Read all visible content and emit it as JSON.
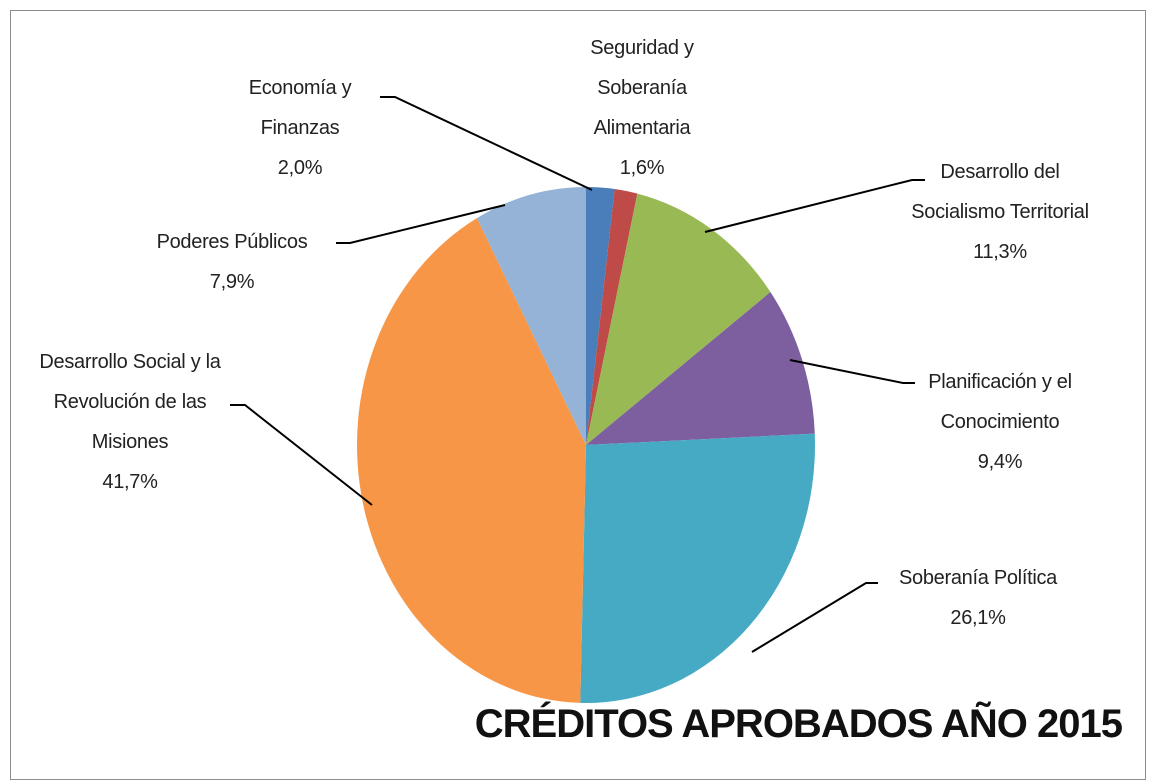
{
  "chart_data": {
    "type": "pie",
    "title": "CRÉDITOS APROBADOS AÑO 2015",
    "categories": [
      "Economía y Finanzas",
      "Seguridad y Soberanía Alimentaria",
      "Desarrollo del Socialismo Territorial",
      "Planificación y el Conocimiento",
      "Soberanía Política",
      "Desarrollo Social y la Revolución de las Misiones",
      "Poderes Públicos"
    ],
    "values": [
      2.0,
      1.6,
      11.3,
      9.4,
      26.1,
      41.7,
      7.9
    ],
    "value_labels": [
      "2,0%",
      "1,6%",
      "11,3%",
      "9,4%",
      "26,1%",
      "41,7%",
      "7,9%"
    ],
    "colors": [
      "#4a7ebb",
      "#be4b48",
      "#98b954",
      "#7d5fa0",
      "#46aac5",
      "#f79646",
      "#95b3d7"
    ]
  }
}
